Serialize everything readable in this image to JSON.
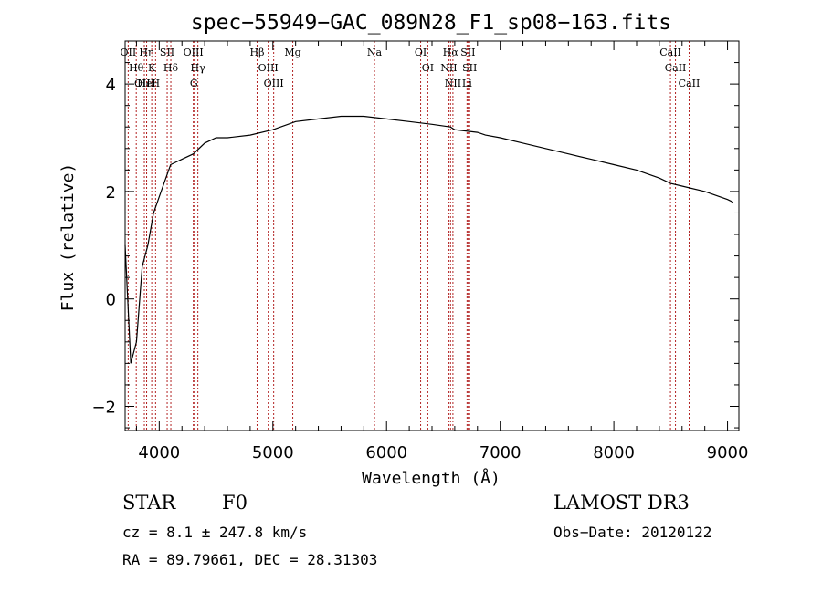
{
  "chart_data": {
    "type": "line",
    "title": "spec−55949−GAC_089N28_F1_sp08−163.fits",
    "xlabel": "Wavelength (Å)",
    "ylabel": "Flux (relative)",
    "xlim": [
      3700,
      9100
    ],
    "ylim": [
      -2.45,
      4.8
    ],
    "xticks": [
      4000,
      5000,
      6000,
      7000,
      8000,
      9000
    ],
    "yticks": [
      -2,
      0,
      2,
      4
    ],
    "ytick_labels": [
      "−2",
      "0",
      "2",
      "4"
    ],
    "series": [
      {
        "name": "spectrum",
        "x": [
          3700,
          3750,
          3800,
          3850,
          3900,
          3950,
          4000,
          4050,
          4100,
          4200,
          4300,
          4400,
          4500,
          4600,
          4800,
          5000,
          5200,
          5400,
          5600,
          5800,
          6000,
          6200,
          6400,
          6562,
          6600,
          6800,
          6870,
          7000,
          7200,
          7400,
          7600,
          7800,
          8000,
          8200,
          8400,
          8500,
          8600,
          8800,
          9000,
          9050
        ],
        "y": [
          1.0,
          -1.2,
          -0.8,
          0.6,
          1.0,
          1.6,
          1.9,
          2.2,
          2.5,
          2.6,
          2.7,
          2.9,
          3.0,
          3.0,
          3.05,
          3.15,
          3.3,
          3.35,
          3.4,
          3.4,
          3.35,
          3.3,
          3.25,
          3.2,
          3.15,
          3.1,
          3.05,
          3.0,
          2.9,
          2.8,
          2.7,
          2.6,
          2.5,
          2.4,
          2.25,
          2.15,
          2.1,
          2.0,
          1.85,
          1.8
        ]
      }
    ],
    "lines": [
      {
        "name": "OII",
        "wavelength": 3727
      },
      {
        "name": "Hθ",
        "wavelength": 3798
      },
      {
        "name": "OIII",
        "wavelength": 3869
      },
      {
        "name": "HeI",
        "wavelength": 3889
      },
      {
        "name": "Hη",
        "wavelength": 3889
      },
      {
        "name": "K",
        "wavelength": 3934
      },
      {
        "name": "H",
        "wavelength": 3968
      },
      {
        "name": "SII",
        "wavelength": 4070
      },
      {
        "name": "Hδ",
        "wavelength": 4102
      },
      {
        "name": "OIII",
        "wavelength": 4300
      },
      {
        "name": "Hγ",
        "wavelength": 4340
      },
      {
        "name": "G",
        "wavelength": 4305
      },
      {
        "name": "Hβ",
        "wavelength": 4861
      },
      {
        "name": "OIII",
        "wavelength": 4959
      },
      {
        "name": "OIII",
        "wavelength": 5007
      },
      {
        "name": "Mg",
        "wavelength": 5175
      },
      {
        "name": "Na",
        "wavelength": 5894
      },
      {
        "name": "OI",
        "wavelength": 6300
      },
      {
        "name": "OI",
        "wavelength": 6363
      },
      {
        "name": "Hα",
        "wavelength": 6563
      },
      {
        "name": "NII",
        "wavelength": 6548
      },
      {
        "name": "NII",
        "wavelength": 6584
      },
      {
        "name": "SII",
        "wavelength": 6716
      },
      {
        "name": "SII",
        "wavelength": 6731
      },
      {
        "name": "Li",
        "wavelength": 6708
      },
      {
        "name": "CaII",
        "wavelength": 8498
      },
      {
        "name": "CaII",
        "wavelength": 8542
      },
      {
        "name": "CaII",
        "wavelength": 8662
      }
    ]
  },
  "info": {
    "object_class": "STAR",
    "subclass": "F0",
    "survey": "LAMOST DR3",
    "redshift": "cz = 8.1 ± 247.8 km/s",
    "obs_date": "Obs−Date: 20120122",
    "coords": "RA =  89.79661, DEC =  28.31303"
  },
  "colors": {
    "spectrum": "#000000",
    "line_marker": "#b22222",
    "axis": "#000000"
  }
}
